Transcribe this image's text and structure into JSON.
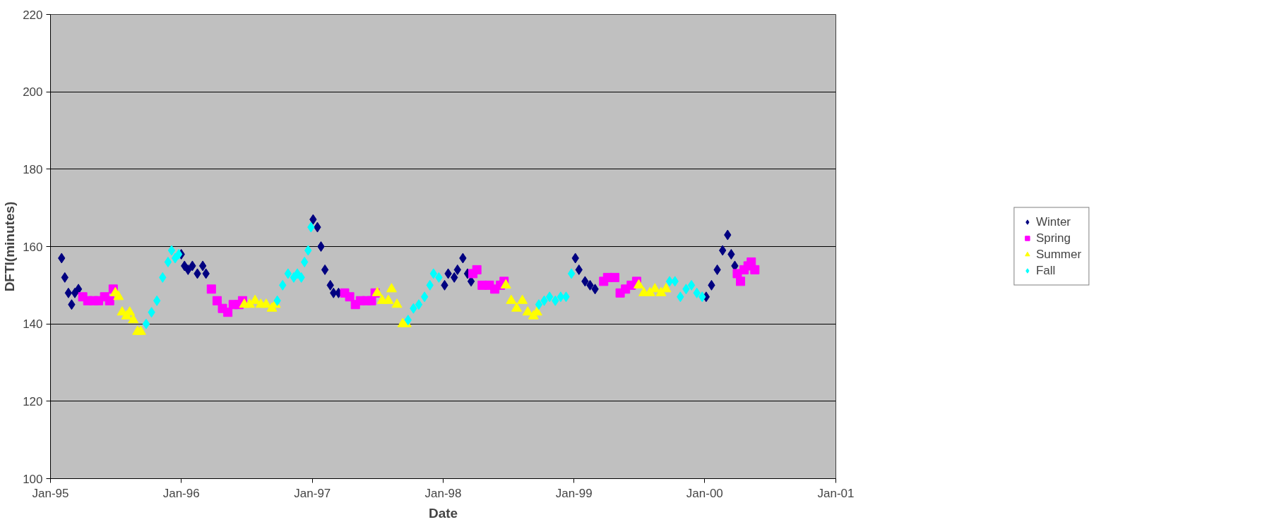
{
  "chart_data": {
    "type": "scatter",
    "xlabel": "Date",
    "ylabel": "DFTI(minutes)",
    "xlim": [
      "1995-01-01",
      "2001-01-01"
    ],
    "ylim": [
      100,
      220
    ],
    "xticks": [
      {
        "value": "1995-01-01",
        "label": "Jan-95"
      },
      {
        "value": "1996-01-01",
        "label": "Jan-96"
      },
      {
        "value": "1997-01-01",
        "label": "Jan-97"
      },
      {
        "value": "1998-01-01",
        "label": "Jan-98"
      },
      {
        "value": "1999-01-01",
        "label": "Jan-99"
      },
      {
        "value": "2000-01-01",
        "label": "Jan-00"
      },
      {
        "value": "2001-01-01",
        "label": "Jan-01"
      }
    ],
    "yticks": [
      100,
      120,
      140,
      160,
      180,
      200,
      220
    ],
    "grid": "y",
    "legend": "right",
    "series": [
      {
        "name": "Winter",
        "color": "#000080",
        "marker": "diamond",
        "x": [
          "1995-02-01",
          "1995-02-10",
          "1995-02-20",
          "1995-03-01",
          "1995-03-10",
          "1995-03-20",
          "1996-01-01",
          "1996-01-10",
          "1996-01-20",
          "1996-02-01",
          "1996-02-15",
          "1996-03-01",
          "1996-03-10",
          "1997-01-03",
          "1997-01-15",
          "1997-01-25",
          "1997-02-05",
          "1997-02-20",
          "1997-03-01",
          "1997-03-15",
          "1998-01-05",
          "1998-01-15",
          "1998-02-01",
          "1998-02-10",
          "1998-02-25",
          "1998-03-10",
          "1998-03-20",
          "1999-01-05",
          "1999-01-15",
          "1999-02-01",
          "1999-02-15",
          "1999-03-01",
          "2000-01-05",
          "2000-01-20",
          "2000-02-05",
          "2000-02-20",
          "2000-03-05",
          "2000-03-15",
          "2000-03-25"
        ],
        "values": [
          157,
          152,
          148,
          145,
          148,
          149,
          158,
          155,
          154,
          155,
          153,
          155,
          153,
          167,
          165,
          160,
          154,
          150,
          148,
          148,
          150,
          153,
          152,
          154,
          157,
          153,
          151,
          157,
          154,
          151,
          150,
          149,
          147,
          150,
          154,
          159,
          163,
          158,
          155
        ]
      },
      {
        "name": "Spring",
        "color": "#ff00ff",
        "marker": "square",
        "x": [
          "1995-04-01",
          "1995-04-15",
          "1995-05-01",
          "1995-05-15",
          "1995-06-01",
          "1995-06-15",
          "1995-06-25",
          "1996-03-25",
          "1996-04-10",
          "1996-04-25",
          "1996-05-10",
          "1996-05-25",
          "1996-06-10",
          "1996-06-20",
          "1997-04-01",
          "1997-04-15",
          "1997-05-01",
          "1997-05-15",
          "1997-06-01",
          "1997-06-15",
          "1997-06-25",
          "1998-03-25",
          "1998-04-05",
          "1998-04-20",
          "1998-05-10",
          "1998-05-25",
          "1998-06-10",
          "1998-06-20",
          "1999-03-25",
          "1999-04-05",
          "1999-04-25",
          "1999-05-10",
          "1999-05-25",
          "1999-06-10",
          "1999-06-25",
          "2000-04-01",
          "2000-04-10",
          "2000-04-20",
          "2000-05-01",
          "2000-05-10",
          "2000-05-20"
        ],
        "values": [
          147,
          146,
          146,
          146,
          147,
          146,
          149,
          149,
          146,
          144,
          143,
          145,
          145,
          146,
          148,
          147,
          145,
          146,
          146,
          146,
          148,
          153,
          154,
          150,
          150,
          149,
          150,
          151,
          151,
          152,
          152,
          148,
          149,
          150,
          151,
          153,
          151,
          154,
          155,
          156,
          154
        ]
      },
      {
        "name": "Summer",
        "color": "#ffff00",
        "marker": "triangle",
        "x": [
          "1995-07-01",
          "1995-07-10",
          "1995-07-20",
          "1995-08-01",
          "1995-08-10",
          "1995-08-20",
          "1995-09-01",
          "1995-09-10",
          "1996-06-25",
          "1996-07-10",
          "1996-07-25",
          "1996-08-10",
          "1996-08-25",
          "1996-09-10",
          "1996-09-20",
          "1997-07-01",
          "1997-07-15",
          "1997-08-01",
          "1997-08-10",
          "1997-08-25",
          "1997-09-10",
          "1997-09-20",
          "1998-06-25",
          "1998-07-10",
          "1998-07-25",
          "1998-08-10",
          "1998-08-25",
          "1998-09-10",
          "1998-09-20",
          "1999-07-01",
          "1999-07-15",
          "1999-08-01",
          "1999-08-15",
          "1999-09-01",
          "1999-09-15"
        ],
        "values": [
          148,
          147,
          143,
          142,
          143,
          141,
          138,
          138,
          145,
          145,
          146,
          145,
          145,
          144,
          145,
          148,
          146,
          146,
          149,
          145,
          140,
          140,
          150,
          146,
          144,
          146,
          143,
          142,
          143,
          150,
          148,
          148,
          149,
          148,
          149
        ]
      },
      {
        "name": "Fall",
        "color": "#00ffff",
        "marker": "diamond",
        "x": [
          "1995-09-25",
          "1995-10-10",
          "1995-10-25",
          "1995-11-10",
          "1995-11-25",
          "1995-12-05",
          "1995-12-15",
          "1995-12-25",
          "1996-09-25",
          "1996-10-10",
          "1996-10-25",
          "1996-11-10",
          "1996-11-20",
          "1996-12-01",
          "1996-12-10",
          "1996-12-20",
          "1996-12-28",
          "1997-09-25",
          "1997-10-10",
          "1997-10-25",
          "1997-11-10",
          "1997-11-25",
          "1997-12-05",
          "1997-12-20",
          "1998-09-25",
          "1998-10-10",
          "1998-10-25",
          "1998-11-10",
          "1998-11-25",
          "1998-12-10",
          "1998-12-25",
          "1999-09-25",
          "1999-10-10",
          "1999-10-25",
          "1999-11-10",
          "1999-11-25",
          "1999-12-10",
          "1999-12-25"
        ],
        "values": [
          140,
          143,
          146,
          152,
          156,
          159,
          157,
          158,
          146,
          150,
          153,
          152,
          153,
          152,
          156,
          159,
          165,
          141,
          144,
          145,
          147,
          150,
          153,
          152,
          145,
          146,
          147,
          146,
          147,
          147,
          153,
          151,
          151,
          147,
          149,
          150,
          148,
          147
        ]
      }
    ]
  }
}
